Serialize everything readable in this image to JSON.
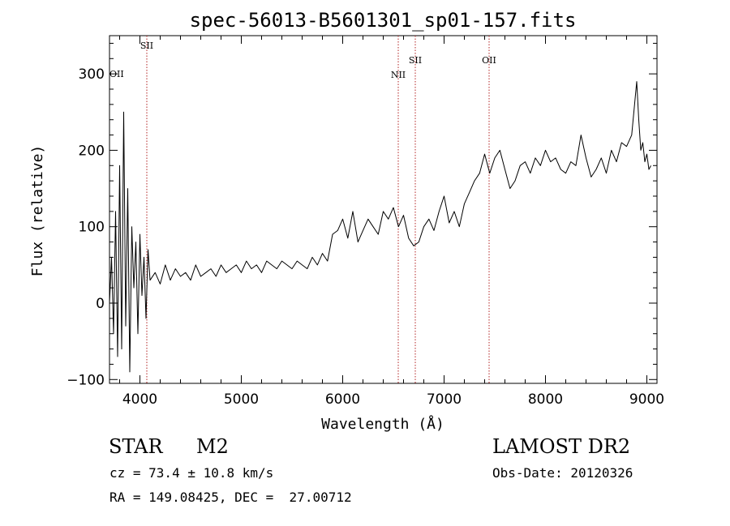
{
  "chart_data": {
    "type": "line",
    "title": "spec-56013-B5601301_sp01-157.fits",
    "xlabel": "Wavelength (Å)",
    "ylabel": "Flux (relative)",
    "xlim": [
      3700,
      9100
    ],
    "ylim": [
      -105,
      350
    ],
    "x_ticks": [
      4000,
      5000,
      6000,
      7000,
      8000,
      9000
    ],
    "y_ticks": [
      -100,
      0,
      100,
      200,
      300
    ],
    "grid": false,
    "line_color": "#000000",
    "marker_color": "#b22222",
    "series": [
      {
        "x": [
          3700,
          3720,
          3740,
          3760,
          3780,
          3800,
          3820,
          3840,
          3860,
          3880,
          3900,
          3920,
          3940,
          3960,
          3980,
          4000,
          4020,
          4040,
          4060,
          4080,
          4100,
          4150,
          4200,
          4250,
          4300,
          4350,
          4400,
          4450,
          4500,
          4550,
          4600,
          4650,
          4700,
          4750,
          4800,
          4850,
          4900,
          4950,
          5000,
          5050,
          5100,
          5150,
          5200,
          5250,
          5300,
          5350,
          5400,
          5450,
          5500,
          5550,
          5600,
          5650,
          5700,
          5750,
          5800,
          5850,
          5900,
          5950,
          6000,
          6050,
          6100,
          6150,
          6200,
          6250,
          6300,
          6350,
          6400,
          6450,
          6500,
          6550,
          6600,
          6650,
          6700,
          6750,
          6800,
          6850,
          6900,
          6950,
          7000,
          7050,
          7100,
          7150,
          7200,
          7250,
          7300,
          7350,
          7400,
          7450,
          7500,
          7550,
          7600,
          7650,
          7700,
          7750,
          7800,
          7850,
          7900,
          7950,
          8000,
          8050,
          8100,
          8150,
          8200,
          8250,
          8300,
          8350,
          8400,
          8450,
          8500,
          8550,
          8600,
          8650,
          8700,
          8750,
          8800,
          8850,
          8900,
          8920,
          8940,
          8960,
          8980,
          9000,
          9020,
          9040
        ],
        "y": [
          0,
          60,
          -40,
          120,
          -70,
          180,
          -60,
          250,
          -30,
          150,
          -90,
          100,
          20,
          80,
          -40,
          90,
          10,
          60,
          -20,
          70,
          30,
          40,
          25,
          50,
          30,
          45,
          35,
          40,
          30,
          50,
          35,
          40,
          45,
          35,
          50,
          40,
          45,
          50,
          40,
          55,
          45,
          50,
          40,
          55,
          50,
          45,
          55,
          50,
          45,
          55,
          50,
          45,
          60,
          50,
          65,
          55,
          90,
          95,
          110,
          85,
          120,
          80,
          95,
          110,
          100,
          90,
          120,
          110,
          125,
          100,
          115,
          85,
          75,
          80,
          100,
          110,
          95,
          120,
          140,
          105,
          120,
          100,
          130,
          145,
          160,
          170,
          195,
          170,
          190,
          200,
          175,
          150,
          160,
          180,
          185,
          170,
          190,
          180,
          200,
          185,
          190,
          175,
          170,
          185,
          180,
          220,
          190,
          165,
          175,
          190,
          170,
          200,
          185,
          210,
          205,
          220,
          290,
          240,
          200,
          210,
          185,
          195,
          175,
          180
        ]
      }
    ],
    "lines": [
      {
        "x": 4068,
        "label": "SII"
      },
      {
        "x": 6548,
        "label": "NII"
      },
      {
        "x": 6716,
        "label": "SII"
      },
      {
        "x": 7444,
        "label": "OII"
      }
    ],
    "edge_label": "OII"
  },
  "info": {
    "object_class": "STAR",
    "subclass": "M2",
    "survey": "LAMOST DR2",
    "cz": "cz = 73.4 ± 10.8 km/s",
    "obs_date": "Obs-Date: 20120326",
    "radec": "RA = 149.08425, DEC =  27.00712"
  }
}
